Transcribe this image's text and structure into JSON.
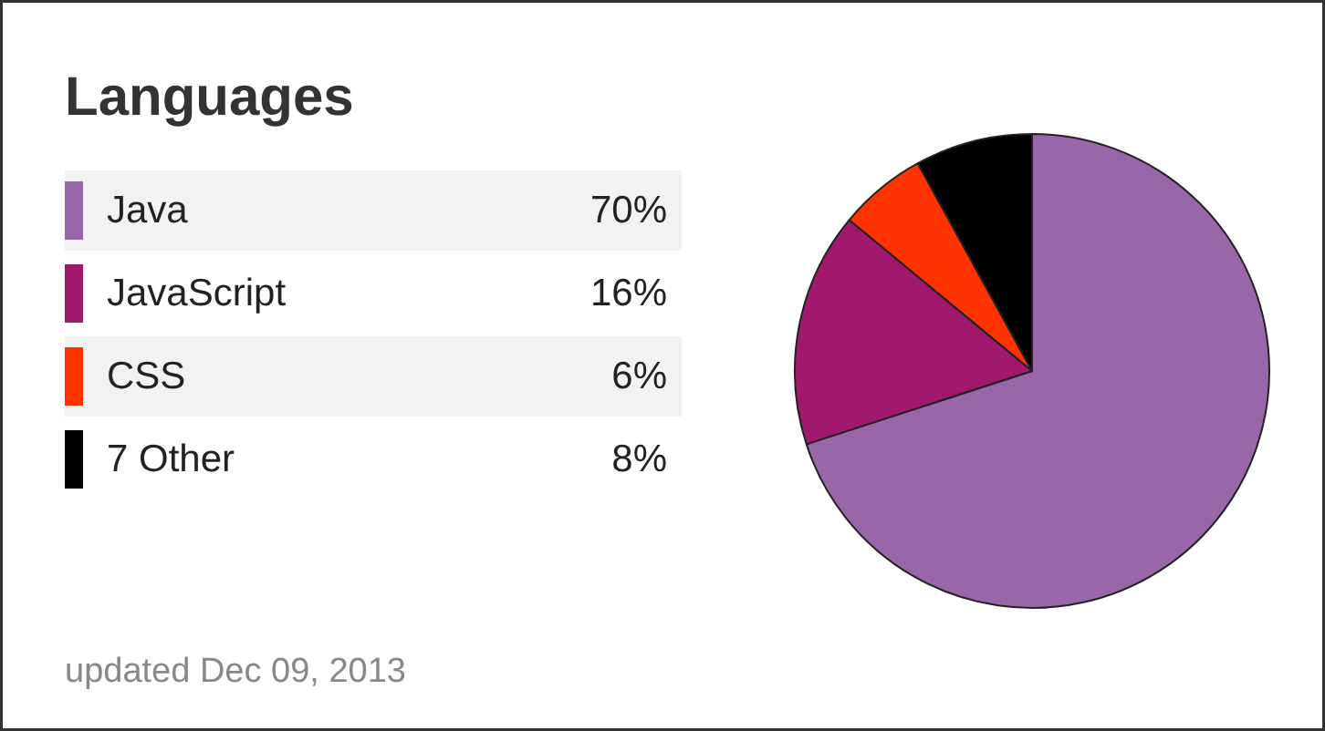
{
  "chart_data": {
    "type": "pie",
    "title": "Languages",
    "categories": [
      "Java",
      "JavaScript",
      "CSS",
      "7 Other"
    ],
    "values": [
      70,
      16,
      6,
      8
    ],
    "colors": [
      "#9966aa",
      "#a0196f",
      "#ff3300",
      "#000000"
    ],
    "value_labels": [
      "70%",
      "16%",
      "6%",
      "8%"
    ],
    "legend": "left",
    "annotations": [
      "updated Dec 09, 2013"
    ]
  }
}
